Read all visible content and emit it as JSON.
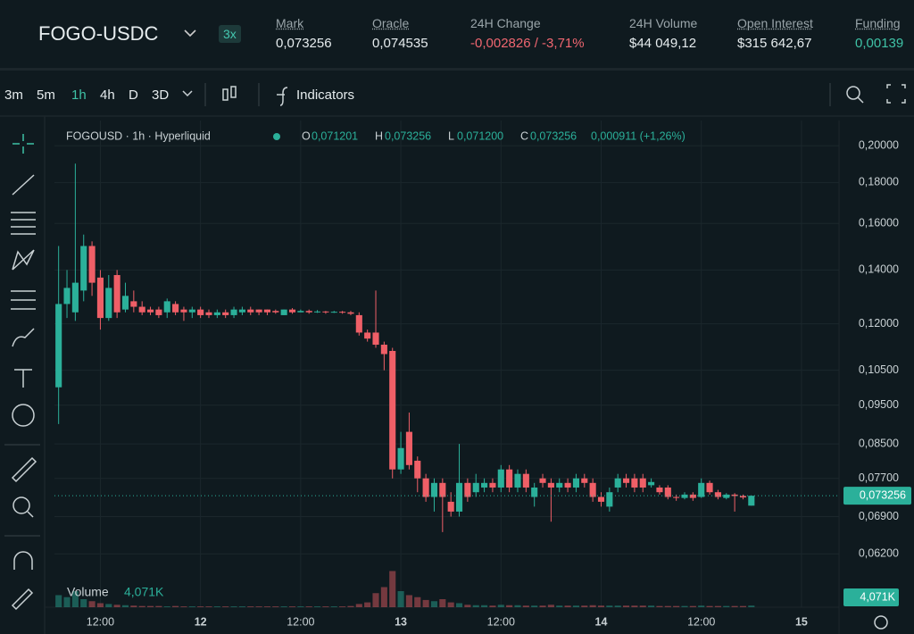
{
  "header": {
    "pair": "FOGO-USDC",
    "leverage": "3x",
    "stats": [
      {
        "label": "Mark",
        "value": "0,073256"
      },
      {
        "label": "Oracle",
        "value": "0,074535"
      },
      {
        "label": "24H Change",
        "value": "-0,002826 / -3,71%"
      },
      {
        "label": "24H Volume",
        "value": "$44 049,12"
      },
      {
        "label": "Open Interest",
        "value": "$315 642,67"
      },
      {
        "label": "Funding",
        "value": "0,00139"
      }
    ]
  },
  "toolbar": {
    "intervals": [
      "3m",
      "5m",
      "1h",
      "4h",
      "D",
      "3D"
    ],
    "indicators": "Indicators"
  },
  "legend": {
    "symbol": "FOGOUSD · 1h · Hyperliquid",
    "open_label": "O",
    "open": "0,071201",
    "high_label": "H",
    "high": "0,073256",
    "low_label": "L",
    "low": "0,071200",
    "close_label": "C",
    "close": "0,073256",
    "change": "0,000911 (+1,26%)"
  },
  "chart_data": {
    "type": "candlestick",
    "log_scale": true,
    "grid": true,
    "up_color": "#2bb09a",
    "down_color": "#ef5f67",
    "categories": [
      null,
      null,
      null,
      null,
      null,
      "12:00",
      null,
      null,
      null,
      null,
      null,
      null,
      null,
      null,
      null,
      null,
      null,
      "12",
      null,
      null,
      null,
      null,
      null,
      null,
      null,
      null,
      null,
      null,
      null,
      "12:00",
      null,
      null,
      null,
      null,
      null,
      null,
      null,
      null,
      null,
      null,
      null,
      "13",
      null,
      null,
      null,
      null,
      null,
      null,
      null,
      null,
      null,
      null,
      null,
      "12:00",
      null,
      null,
      null,
      null,
      null,
      null,
      null,
      null,
      null,
      null,
      null,
      "14",
      null,
      null,
      null,
      null,
      null,
      null,
      null,
      null,
      null,
      null,
      null,
      "12:00",
      null,
      null,
      null,
      null,
      null,
      null,
      null,
      null,
      null,
      null,
      null,
      "15",
      null,
      null,
      null,
      null
    ],
    "open": [
      0.1,
      0.127,
      0.124,
      0.132,
      0.15,
      0.137,
      0.122,
      0.138,
      0.125,
      0.128,
      0.126,
      0.125,
      0.125,
      0.124,
      0.127,
      0.125,
      0.124,
      0.125,
      0.124,
      0.123,
      0.124,
      0.123,
      0.124,
      0.125,
      0.125,
      0.125,
      0.1245,
      0.123,
      0.125,
      0.124,
      0.1245,
      0.124,
      0.1243,
      0.124,
      0.1242,
      0.124,
      0.123,
      0.117,
      0.117,
      0.113,
      0.111,
      0.079,
      0.088,
      0.081,
      0.077,
      0.073,
      0.076,
      0.072,
      0.07,
      0.076,
      0.074,
      0.075,
      0.076,
      0.075,
      0.079,
      0.075,
      0.078,
      0.073,
      0.077,
      0.076,
      0.075,
      0.076,
      0.075,
      0.077,
      0.076,
      0.073,
      0.071,
      0.075,
      0.077,
      0.077,
      0.077,
      0.0755,
      0.075,
      0.075,
      0.073,
      0.0728,
      0.0735,
      0.073,
      0.076,
      0.074,
      0.0728,
      0.0735,
      0.0732,
      0.071201,
      null,
      null,
      null,
      null,
      null,
      null,
      null,
      null,
      null,
      null
    ],
    "high": [
      0.15,
      0.14,
      0.19,
      0.155,
      0.152,
      0.14,
      0.138,
      0.14,
      0.135,
      0.132,
      0.128,
      0.126,
      0.126,
      0.129,
      0.128,
      0.126,
      0.126,
      0.126,
      0.125,
      0.125,
      0.125,
      0.126,
      0.126,
      0.126,
      0.125,
      0.125,
      0.125,
      0.125,
      0.1255,
      0.125,
      0.125,
      0.1248,
      0.1245,
      0.1245,
      0.1245,
      0.1245,
      0.124,
      0.118,
      0.132,
      0.114,
      0.112,
      0.088,
      0.093,
      0.082,
      0.078,
      0.077,
      0.077,
      0.074,
      0.085,
      0.077,
      0.078,
      0.077,
      0.077,
      0.08,
      0.08,
      0.079,
      0.079,
      0.076,
      0.078,
      0.077,
      0.077,
      0.077,
      0.078,
      0.078,
      0.077,
      0.074,
      0.075,
      0.078,
      0.078,
      0.078,
      0.078,
      0.077,
      0.0755,
      0.0755,
      0.0735,
      0.074,
      0.074,
      0.077,
      0.0765,
      0.0745,
      0.0738,
      0.0738,
      0.0735,
      0.073256,
      null,
      null,
      null,
      null,
      null,
      null,
      null,
      null,
      null,
      null
    ],
    "low": [
      0.09,
      0.122,
      0.121,
      0.128,
      0.13,
      0.118,
      0.121,
      0.122,
      0.124,
      0.124,
      0.123,
      0.123,
      0.122,
      0.122,
      0.123,
      0.121,
      0.122,
      0.122,
      0.122,
      0.122,
      0.122,
      0.122,
      0.123,
      0.123,
      0.123,
      0.123,
      0.1235,
      0.123,
      0.1235,
      0.124,
      0.1235,
      0.1238,
      0.1235,
      0.1238,
      0.1235,
      0.123,
      0.116,
      0.114,
      0.112,
      0.105,
      0.077,
      0.078,
      0.079,
      0.074,
      0.072,
      0.07,
      0.066,
      0.069,
      0.069,
      0.072,
      0.073,
      0.074,
      0.074,
      0.074,
      0.074,
      0.074,
      0.074,
      0.071,
      0.075,
      0.068,
      0.074,
      0.074,
      0.074,
      0.075,
      0.072,
      0.071,
      0.07,
      0.074,
      0.075,
      0.074,
      0.074,
      0.075,
      0.0735,
      0.0725,
      0.0722,
      0.0725,
      0.0722,
      0.0728,
      0.0735,
      0.0725,
      0.0725,
      0.07,
      0.0725,
      0.0712,
      null,
      null,
      null,
      null,
      null,
      null,
      null,
      null,
      null,
      null
    ],
    "close": [
      0.127,
      0.133,
      0.135,
      0.15,
      0.135,
      0.122,
      0.133,
      0.124,
      0.13,
      0.126,
      0.124,
      0.124,
      0.123,
      0.128,
      0.124,
      0.124,
      0.125,
      0.123,
      0.123,
      0.124,
      0.123,
      0.125,
      0.125,
      0.124,
      0.124,
      0.124,
      0.124,
      0.125,
      0.124,
      0.1245,
      0.124,
      0.1243,
      0.124,
      0.1242,
      0.124,
      0.1235,
      0.117,
      0.115,
      0.113,
      0.11,
      0.079,
      0.084,
      0.08,
      0.077,
      0.073,
      0.076,
      0.073,
      0.07,
      0.076,
      0.073,
      0.076,
      0.076,
      0.075,
      0.079,
      0.075,
      0.078,
      0.075,
      0.075,
      0.076,
      0.075,
      0.076,
      0.075,
      0.077,
      0.076,
      0.073,
      0.072,
      0.074,
      0.077,
      0.076,
      0.075,
      0.075,
      0.0762,
      0.074,
      0.073,
      0.0728,
      0.0735,
      0.0728,
      0.076,
      0.074,
      0.073,
      0.0735,
      0.0732,
      0.0729,
      0.073256,
      null,
      null,
      null,
      null,
      null,
      null,
      null,
      null,
      null,
      null
    ],
    "volume": [
      30,
      25,
      40,
      20,
      15,
      10,
      8,
      6,
      5,
      4,
      3,
      3,
      3,
      2,
      3,
      2,
      2,
      2,
      2,
      2,
      2,
      2,
      2,
      2,
      2,
      2,
      2,
      2,
      2,
      2,
      2,
      2,
      2,
      2,
      2,
      3,
      8,
      12,
      35,
      50,
      90,
      40,
      30,
      25,
      18,
      15,
      20,
      12,
      10,
      6,
      5,
      5,
      4,
      6,
      5,
      5,
      4,
      4,
      4,
      6,
      4,
      4,
      4,
      4,
      5,
      4,
      4,
      4,
      4,
      4,
      4,
      4,
      3,
      3,
      3,
      3,
      3,
      4,
      3,
      3,
      3,
      3,
      3,
      4.071,
      null,
      null,
      null,
      null,
      null,
      null,
      null,
      null,
      null,
      null
    ],
    "volume_ylim": [
      0,
      100
    ],
    "ylim": [
      0.0532,
      0.215
    ],
    "yticks": [
      {
        "value": 0.2,
        "label": "0,20000"
      },
      {
        "value": 0.18,
        "label": "0,18000"
      },
      {
        "value": 0.16,
        "label": "0,16000"
      },
      {
        "value": 0.14,
        "label": "0,14000"
      },
      {
        "value": 0.12,
        "label": "0,12000"
      },
      {
        "value": 0.105,
        "label": "0,10500"
      },
      {
        "value": 0.095,
        "label": "0,09500"
      },
      {
        "value": 0.085,
        "label": "0,08500"
      },
      {
        "value": 0.077,
        "label": "0,07700"
      },
      {
        "value": 0.069,
        "label": "0,06900"
      },
      {
        "value": 0.062,
        "label": "0,06200"
      }
    ],
    "last_price": {
      "value": 0.073256,
      "label": "0,073256"
    },
    "volume_title": "Volume",
    "volume_label": {
      "value": 4.071,
      "label": "4,071K"
    }
  }
}
